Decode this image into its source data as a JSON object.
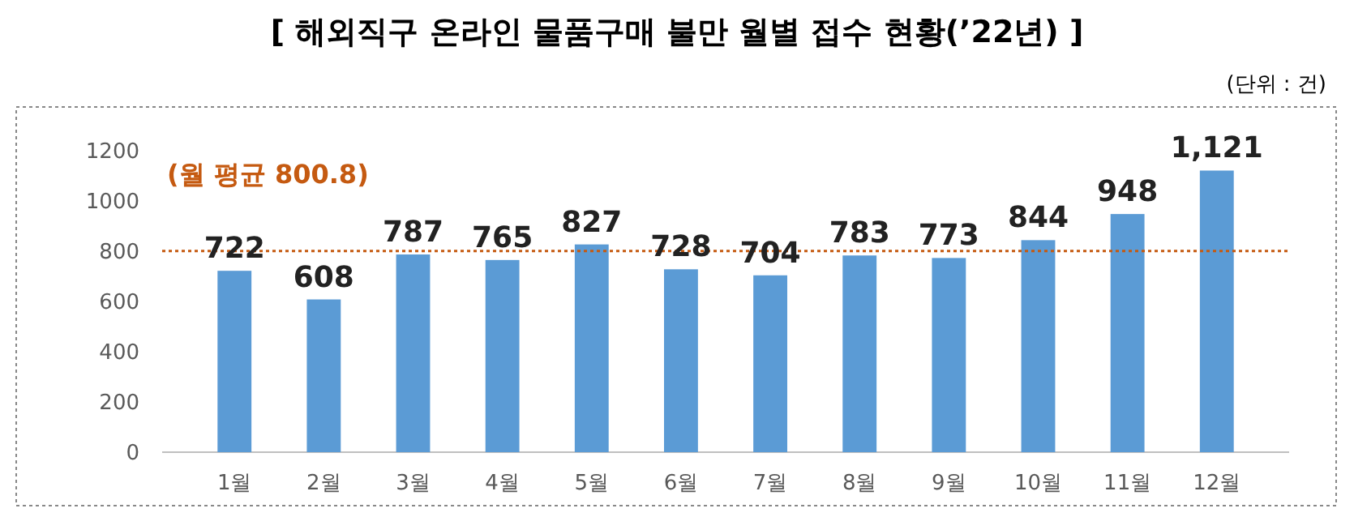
{
  "chart_data": {
    "type": "bar",
    "title": "[ 해외직구 온라인 물품구매 불만 월별 접수 현황(’22년) ]",
    "subtitle": "(단위 : 건)",
    "categories": [
      "1월",
      "2월",
      "3월",
      "4월",
      "5월",
      "6월",
      "7월",
      "8월",
      "9월",
      "10월",
      "11월",
      "12월"
    ],
    "values": [
      722,
      608,
      787,
      765,
      827,
      728,
      704,
      783,
      773,
      844,
      948,
      1121
    ],
    "value_labels": [
      "722",
      "608",
      "787",
      "765",
      "827",
      "728",
      "704",
      "783",
      "773",
      "844",
      "948",
      "1,121"
    ],
    "color": "#5b9bd5",
    "ylim": [
      0,
      1200
    ],
    "yticks": [
      0,
      200,
      400,
      600,
      800,
      1000,
      1200
    ],
    "grid": false,
    "ref_lines": [
      {
        "axis": "y",
        "value": 800.8,
        "label": "(월 평균 800.8)",
        "color": "#c55a11",
        "line_style": "dotted"
      }
    ]
  }
}
